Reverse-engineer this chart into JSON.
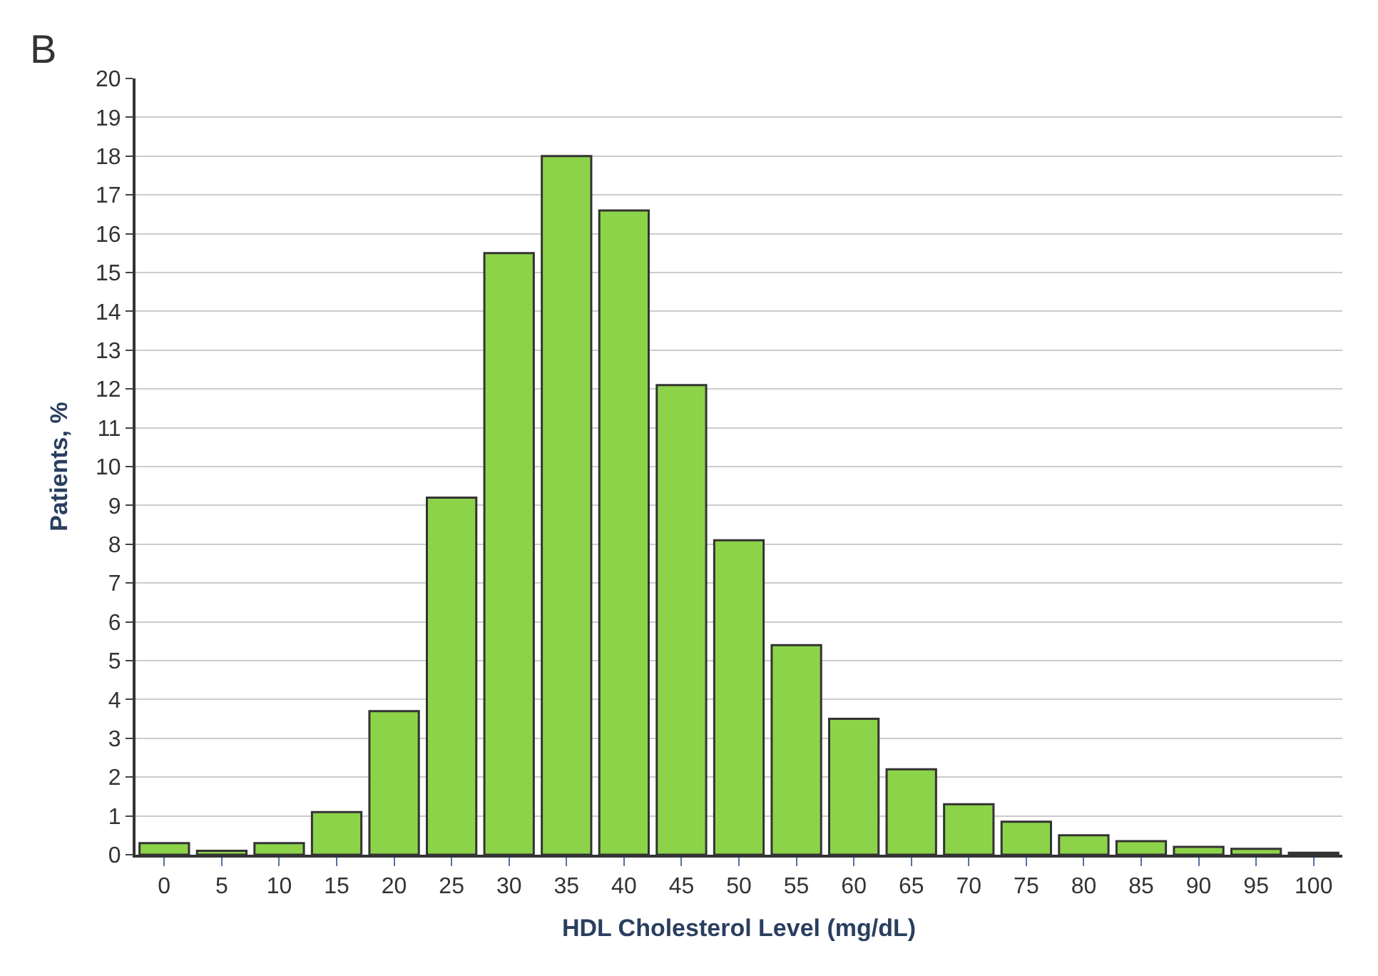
{
  "chart_data": {
    "type": "bar",
    "xlabel": "HDL Cholesterol Level (mg/dL)",
    "ylabel": "Patients, %",
    "annotations": [
      "B"
    ],
    "categories": [
      "0",
      "5",
      "10",
      "15",
      "20",
      "25",
      "30",
      "35",
      "40",
      "45",
      "50",
      "55",
      "60",
      "65",
      "70",
      "75",
      "80",
      "85",
      "90",
      "95",
      "100"
    ],
    "values": [
      0.3,
      0.1,
      0.3,
      1.1,
      3.7,
      9.2,
      15.5,
      18.0,
      16.6,
      12.1,
      8.1,
      5.4,
      3.5,
      2.2,
      1.3,
      0.85,
      0.5,
      0.35,
      0.2,
      0.15,
      0.05
    ],
    "color": "#8dd34a",
    "ylim": [
      0,
      20
    ],
    "yticks": [
      0,
      1,
      2,
      3,
      4,
      5,
      6,
      7,
      8,
      9,
      10,
      11,
      12,
      13,
      14,
      15,
      16,
      17,
      18,
      19,
      20
    ],
    "grid": "y"
  }
}
